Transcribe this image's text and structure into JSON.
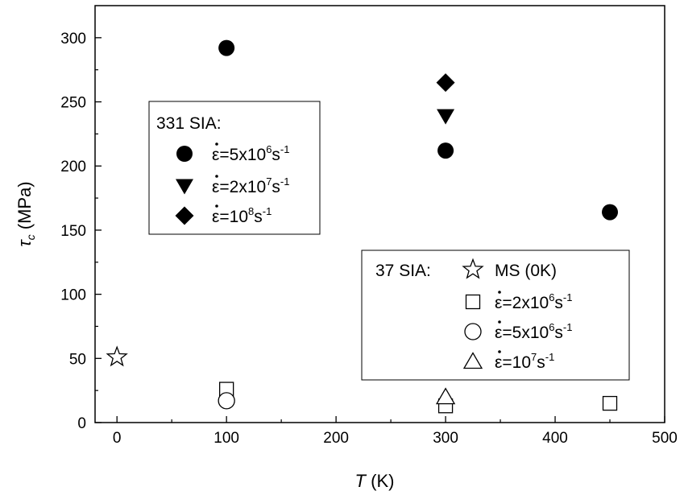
{
  "chart_data": {
    "type": "scatter",
    "xlabel_italic": "T",
    "xlabel_unit": " (K)",
    "ylabel_symbol": "τ",
    "ylabel_sub": "c",
    "ylabel_unit": " (MPa)",
    "xlim": [
      -20,
      500
    ],
    "ylim": [
      0,
      325
    ],
    "x_ticks": [
      0,
      100,
      200,
      300,
      400,
      500
    ],
    "y_ticks": [
      0,
      50,
      100,
      150,
      200,
      250,
      300
    ],
    "grid": false,
    "series": [
      {
        "group": "331 SIA",
        "rate_base": "=5x10",
        "rate_exp": "6",
        "rate_unit": "s",
        "marker": "circle",
        "filled": true,
        "points": [
          {
            "x": 100,
            "y": 292
          },
          {
            "x": 300,
            "y": 212
          },
          {
            "x": 450,
            "y": 164
          }
        ]
      },
      {
        "group": "331 SIA",
        "rate_base": "=2x10",
        "rate_exp": "7",
        "rate_unit": "s",
        "marker": "triangle-down",
        "filled": true,
        "points": [
          {
            "x": 300,
            "y": 239
          }
        ]
      },
      {
        "group": "331 SIA",
        "rate_base": "=10",
        "rate_exp": "8",
        "rate_unit": "s",
        "marker": "diamond",
        "filled": true,
        "points": [
          {
            "x": 300,
            "y": 265
          }
        ]
      },
      {
        "group": "37 SIA",
        "name": "MS (0K)",
        "marker": "star",
        "filled": false,
        "points": [
          {
            "x": 0,
            "y": 51
          }
        ]
      },
      {
        "group": "37 SIA",
        "rate_base": "=2x10",
        "rate_exp": "6",
        "rate_unit": "s",
        "marker": "square",
        "filled": false,
        "points": [
          {
            "x": 100,
            "y": 26
          },
          {
            "x": 300,
            "y": 13
          },
          {
            "x": 450,
            "y": 15
          }
        ]
      },
      {
        "group": "37 SIA",
        "rate_base": "=5x10",
        "rate_exp": "6",
        "rate_unit": "s",
        "marker": "circle",
        "filled": false,
        "points": [
          {
            "x": 100,
            "y": 17
          }
        ]
      },
      {
        "group": "37 SIA",
        "rate_base": "=10",
        "rate_exp": "7",
        "rate_unit": "s",
        "marker": "triangle-up",
        "filled": false,
        "points": [
          {
            "x": 300,
            "y": 20
          }
        ]
      }
    ],
    "legends": [
      {
        "title": "331 SIA:",
        "placement": "upper-left"
      },
      {
        "title": "37 SIA:",
        "placement": "lower-right"
      }
    ]
  }
}
